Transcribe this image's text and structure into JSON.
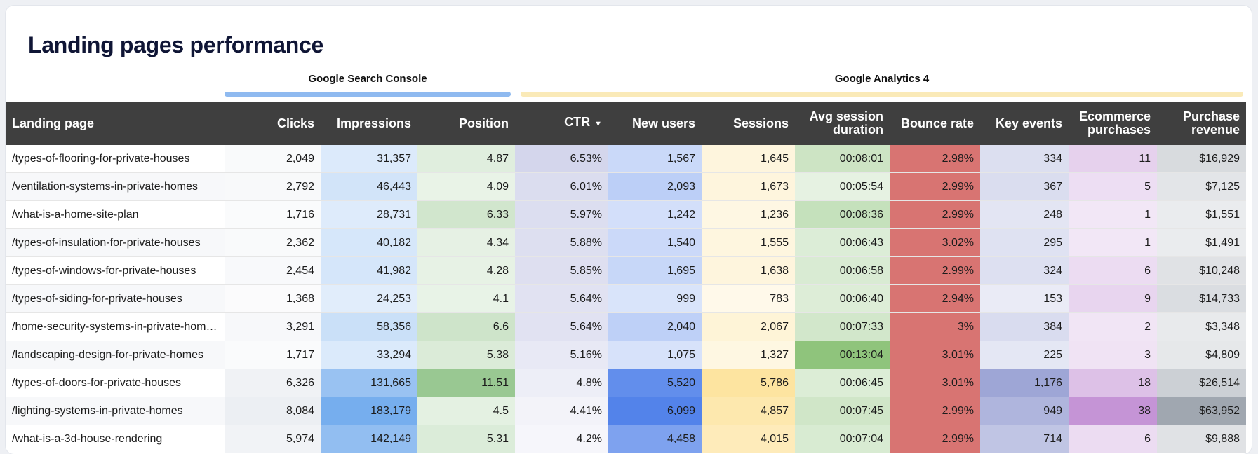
{
  "title": "Landing pages performance",
  "groups": {
    "gsc": "Google Search Console",
    "ga": "Google Analytics 4"
  },
  "columns": {
    "landing_page": "Landing page",
    "clicks": "Clicks",
    "impressions": "Impressions",
    "position": "Position",
    "ctr": "CTR",
    "new_users": "New users",
    "sessions": "Sessions",
    "avg_session_duration_1": "Avg session",
    "avg_session_duration_2": "duration",
    "bounce_rate": "Bounce rate",
    "key_events": "Key events",
    "ecommerce_purchases_1": "Ecommerce",
    "ecommerce_purchases_2": "purchases",
    "purchase_revenue_1": "Purchase",
    "purchase_revenue_2": "revenue"
  },
  "sort_icon": "caret-down-icon",
  "rows": [
    {
      "page": "/types-of-flooring-for-private-houses",
      "clicks": "2,049",
      "impressions": "31,357",
      "position": "4.87",
      "ctr": "6.53%",
      "new_users": "1,567",
      "sessions": "1,645",
      "duration": "00:08:01",
      "bounce": "2.98%",
      "key_events": "334",
      "purchases": "11",
      "revenue": "$16,929"
    },
    {
      "page": "/ventilation-systems-in-private-homes",
      "clicks": "2,792",
      "impressions": "46,443",
      "position": "4.09",
      "ctr": "6.01%",
      "new_users": "2,093",
      "sessions": "1,673",
      "duration": "00:05:54",
      "bounce": "2.99%",
      "key_events": "367",
      "purchases": "5",
      "revenue": "$7,125"
    },
    {
      "page": "/what-is-a-home-site-plan",
      "clicks": "1,716",
      "impressions": "28,731",
      "position": "6.33",
      "ctr": "5.97%",
      "new_users": "1,242",
      "sessions": "1,236",
      "duration": "00:08:36",
      "bounce": "2.99%",
      "key_events": "248",
      "purchases": "1",
      "revenue": "$1,551"
    },
    {
      "page": "/types-of-insulation-for-private-houses",
      "clicks": "2,362",
      "impressions": "40,182",
      "position": "4.34",
      "ctr": "5.88%",
      "new_users": "1,540",
      "sessions": "1,555",
      "duration": "00:06:43",
      "bounce": "3.02%",
      "key_events": "295",
      "purchases": "1",
      "revenue": "$1,491"
    },
    {
      "page": "/types-of-windows-for-private-houses",
      "clicks": "2,454",
      "impressions": "41,982",
      "position": "4.28",
      "ctr": "5.85%",
      "new_users": "1,695",
      "sessions": "1,638",
      "duration": "00:06:58",
      "bounce": "2.99%",
      "key_events": "324",
      "purchases": "6",
      "revenue": "$10,248"
    },
    {
      "page": "/types-of-siding-for-private-houses",
      "clicks": "1,368",
      "impressions": "24,253",
      "position": "4.1",
      "ctr": "5.64%",
      "new_users": "999",
      "sessions": "783",
      "duration": "00:06:40",
      "bounce": "2.94%",
      "key_events": "153",
      "purchases": "9",
      "revenue": "$14,733"
    },
    {
      "page": "/home-security-systems-in-private-hom…",
      "clicks": "3,291",
      "impressions": "58,356",
      "position": "6.6",
      "ctr": "5.64%",
      "new_users": "2,040",
      "sessions": "2,067",
      "duration": "00:07:33",
      "bounce": "3%",
      "key_events": "384",
      "purchases": "2",
      "revenue": "$3,348"
    },
    {
      "page": "/landscaping-design-for-private-homes",
      "clicks": "1,717",
      "impressions": "33,294",
      "position": "5.38",
      "ctr": "5.16%",
      "new_users": "1,075",
      "sessions": "1,327",
      "duration": "00:13:04",
      "bounce": "3.01%",
      "key_events": "225",
      "purchases": "3",
      "revenue": "$4,809"
    },
    {
      "page": "/types-of-doors-for-private-houses",
      "clicks": "6,326",
      "impressions": "131,665",
      "position": "11.51",
      "ctr": "4.8%",
      "new_users": "5,520",
      "sessions": "5,786",
      "duration": "00:06:45",
      "bounce": "3.01%",
      "key_events": "1,176",
      "purchases": "18",
      "revenue": "$26,514"
    },
    {
      "page": "/lighting-systems-in-private-homes",
      "clicks": "8,084",
      "impressions": "183,179",
      "position": "4.5",
      "ctr": "4.41%",
      "new_users": "6,099",
      "sessions": "4,857",
      "duration": "00:07:45",
      "bounce": "2.99%",
      "key_events": "949",
      "purchases": "38",
      "revenue": "$63,952"
    },
    {
      "page": "/what-is-a-3d-house-rendering",
      "clicks": "5,974",
      "impressions": "142,149",
      "position": "5.31",
      "ctr": "4.2%",
      "new_users": "4,458",
      "sessions": "4,015",
      "duration": "00:07:04",
      "bounce": "2.99%",
      "key_events": "714",
      "purchases": "6",
      "revenue": "$9,888"
    }
  ]
}
